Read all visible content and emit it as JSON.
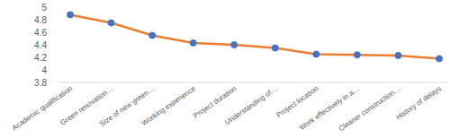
{
  "chart_data": {
    "type": "line",
    "categories": [
      "Academic qualification",
      "Green renovation…",
      "Size of new green…",
      "Working experience",
      "Project duration",
      "Understanding of…",
      "Project location",
      "Work effectively in a…",
      "Cleaner construction…",
      "History of delays"
    ],
    "values": [
      4.88,
      4.75,
      4.55,
      4.43,
      4.4,
      4.35,
      4.25,
      4.24,
      4.23,
      4.18
    ],
    "color": "#ed7d31",
    "marker": "circle",
    "ylim": [
      3.8,
      5
    ],
    "yticks": [
      3.8,
      4,
      4.2,
      4.4,
      4.6,
      4.8,
      5
    ],
    "grid": false
  }
}
